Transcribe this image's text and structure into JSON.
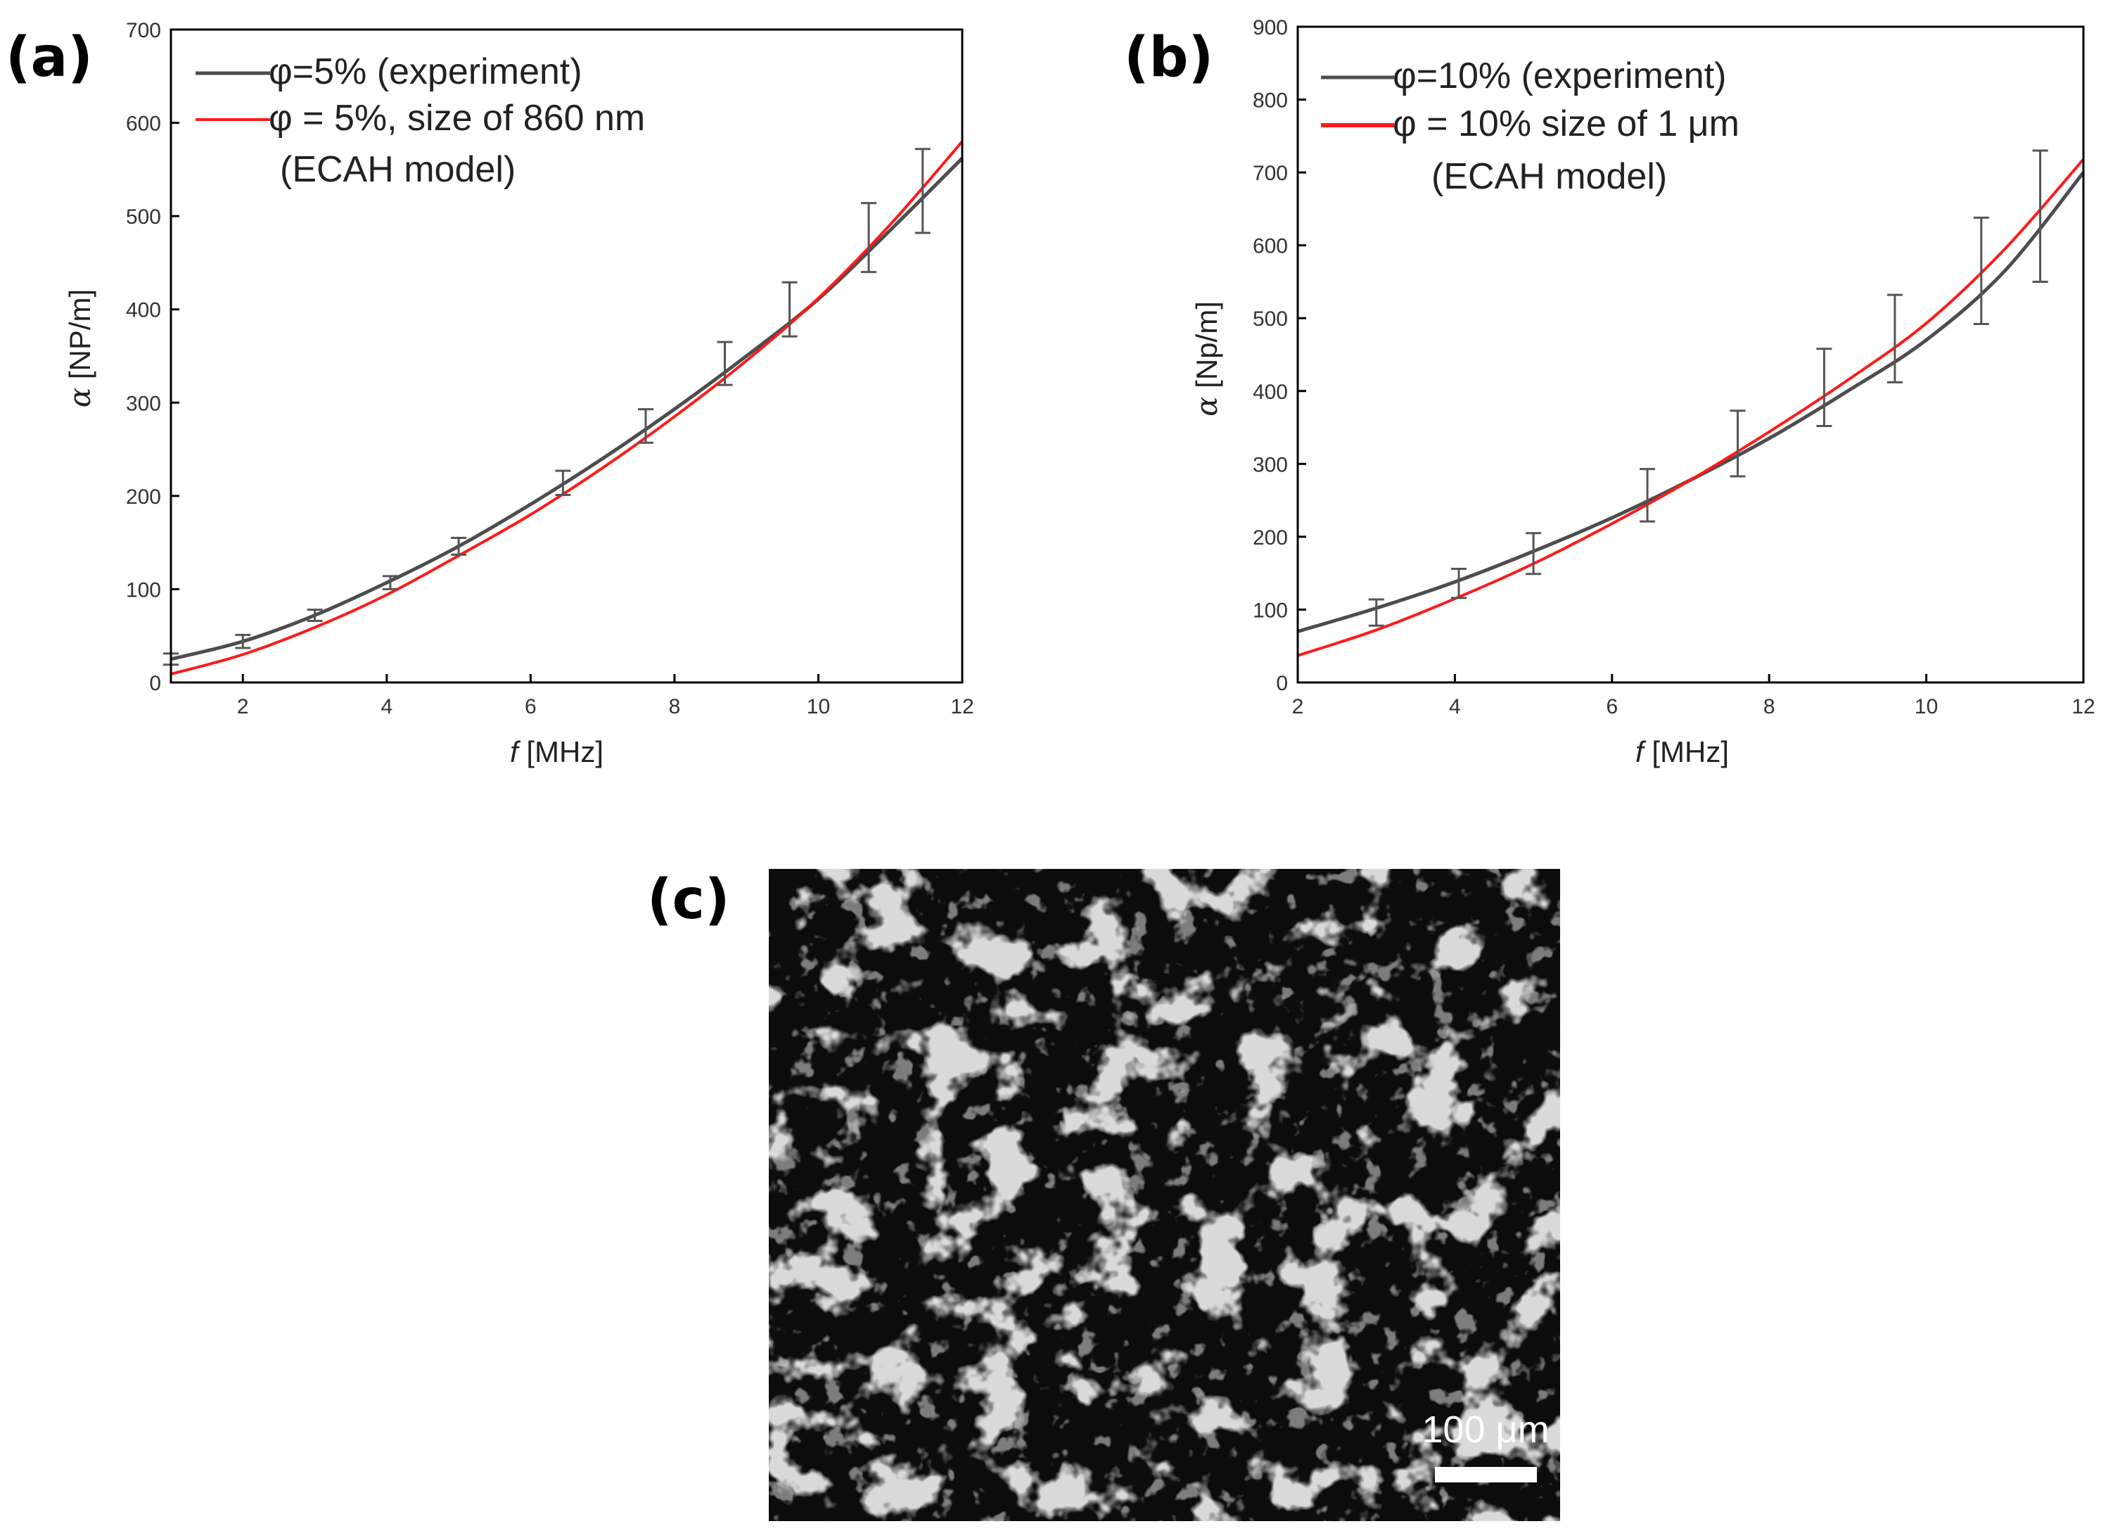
{
  "panels": {
    "a": "(a)",
    "b": "(b)",
    "c": "(c)"
  },
  "colors": {
    "experiment": "#4d4d4d",
    "model": "#ff1a1a",
    "axis": "#000000"
  },
  "chart_data": [
    {
      "type": "line",
      "panel": "(a)",
      "xlabel_italic": "f",
      "xlabel_rest": " [MHz]",
      "ylabel_symbol": "α",
      "ylabel_rest": " [NP/m]",
      "xlim": [
        1,
        12
      ],
      "ylim": [
        0,
        700
      ],
      "xticks": [
        2,
        4,
        6,
        8,
        10,
        12
      ],
      "yticks": [
        0,
        100,
        200,
        300,
        400,
        500,
        600,
        700
      ],
      "grid": false,
      "legend_position": "top-left",
      "legend": [
        {
          "label": "φ=5% (experiment)"
        },
        {
          "label": "φ = 5%, size of 860 nm",
          "label_line2": "(ECAH model)"
        }
      ],
      "series": [
        {
          "name": "φ=5% (experiment)",
          "role": "experiment",
          "x": [
            1,
            2,
            3,
            4,
            5,
            6,
            7,
            8,
            9,
            10,
            11,
            12
          ],
          "y": [
            25,
            44,
            72,
            107,
            146,
            191,
            240,
            293,
            350,
            411,
            485,
            562
          ]
        },
        {
          "name": "φ = 5%, size of 860 nm (ECAH model)",
          "role": "model",
          "x": [
            1,
            2,
            3,
            4,
            5,
            6,
            7,
            8,
            9,
            10,
            11,
            12
          ],
          "y": [
            9,
            30,
            59,
            94,
            136,
            180,
            230,
            285,
            345,
            412,
            491,
            580
          ]
        }
      ],
      "error_bars": {
        "x": [
          1,
          2,
          3,
          4.05,
          5,
          6.45,
          7.6,
          8.7,
          9.6,
          10.7,
          11.45
        ],
        "y": [
          25,
          44,
          72,
          107,
          146,
          214,
          275,
          342,
          400,
          477,
          527
        ],
        "err": [
          6,
          7,
          6,
          7,
          9,
          13,
          18,
          23,
          29,
          37,
          45
        ]
      }
    },
    {
      "type": "line",
      "panel": "(b)",
      "xlabel_italic": "f",
      "xlabel_rest": " [MHz]",
      "ylabel_symbol": "α",
      "ylabel_rest": " [Np/m]",
      "xlim": [
        2,
        12
      ],
      "ylim": [
        0,
        900
      ],
      "xticks": [
        2,
        4,
        6,
        8,
        10,
        12
      ],
      "yticks": [
        0,
        100,
        200,
        300,
        400,
        500,
        600,
        700,
        800,
        900
      ],
      "grid": false,
      "legend_position": "top-left",
      "legend": [
        {
          "label": "φ=10% (experiment)"
        },
        {
          "label": "φ = 10% size of 1  μm",
          "label_line2": "(ECAH model)"
        }
      ],
      "series": [
        {
          "name": "φ=10% (experiment)",
          "role": "experiment",
          "x": [
            2,
            3,
            4,
            5,
            6,
            7,
            8,
            9,
            10,
            11,
            12
          ],
          "y": [
            70,
            102,
            138,
            180,
            226,
            278,
            335,
            400,
            470,
            565,
            700
          ]
        },
        {
          "name": "φ = 10% size of 1 μm (ECAH model)",
          "role": "model",
          "x": [
            2,
            3,
            4,
            5,
            6,
            7,
            8,
            9,
            10,
            11,
            12
          ],
          "y": [
            37,
            72,
            115,
            163,
            218,
            278,
            344,
            415,
            493,
            595,
            718
          ]
        }
      ],
      "error_bars": {
        "x": [
          3,
          4.05,
          5,
          6.45,
          7.6,
          8.7,
          9.6,
          10.7,
          11.45
        ],
        "y": [
          96,
          136,
          177,
          257,
          328,
          405,
          472,
          565,
          640
        ],
        "err": [
          18,
          20,
          28,
          36,
          45,
          53,
          60,
          73,
          90
        ]
      }
    }
  ],
  "micrograph": {
    "scale_label": "100 μm"
  }
}
